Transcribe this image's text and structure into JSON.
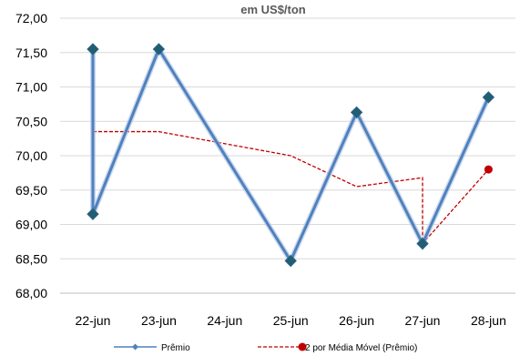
{
  "chart_data": {
    "type": "line",
    "title": "em US$/ton",
    "xlabel": "",
    "ylabel": "",
    "ylim": [
      68.0,
      72.0
    ],
    "ytick_values": [
      68.0,
      68.5,
      69.0,
      69.5,
      70.0,
      70.5,
      71.0,
      71.5,
      72.0
    ],
    "yticks": [
      "68,00",
      "68,50",
      "69,00",
      "69,50",
      "70,00",
      "70,50",
      "71,00",
      "71,50",
      "72,00"
    ],
    "categories": [
      "22-jun",
      "23-jun",
      "24-jun",
      "25-jun",
      "26-jun",
      "27-jun",
      "28-jun"
    ],
    "grid": "horizontal",
    "legend_position": "bottom",
    "series": [
      {
        "name": "Prêmio",
        "style": "solid",
        "color": "#4F81BD",
        "marker": "diamond",
        "marker_color": "#1F5F6F",
        "points": [
          {
            "x": "22-jun",
            "y": 71.55
          },
          {
            "x": "22-jun",
            "y": 69.15
          },
          {
            "x": "23-jun",
            "y": 71.55
          },
          {
            "x": "25-jun",
            "y": 68.47
          },
          {
            "x": "26-jun",
            "y": 70.63
          },
          {
            "x": "27-jun",
            "y": 68.72
          },
          {
            "x": "28-jun",
            "y": 70.85
          }
        ]
      },
      {
        "name": "2 por Média Móvel (Prêmio)",
        "style": "dashed",
        "color": "#C00000",
        "marker": "circle-last",
        "points": [
          {
            "x": "22-jun",
            "y": 70.35
          },
          {
            "x": "23-jun",
            "y": 70.35
          },
          {
            "x": "25-jun",
            "y": 70.0
          },
          {
            "x": "26-jun",
            "y": 69.55
          },
          {
            "x": "27-jun",
            "y": 69.68
          },
          {
            "x": "27-jun",
            "y": 68.72
          },
          {
            "x": "28-jun",
            "y": 69.8
          }
        ]
      }
    ]
  }
}
